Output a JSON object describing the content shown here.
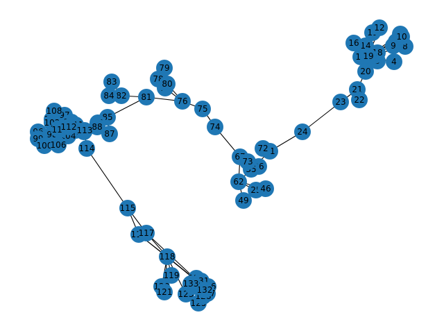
{
  "graph": {
    "node_color": "#1f77b4",
    "edge_color": "#000000",
    "label_color": "#000000",
    "nodes": [
      {
        "id": "1"
      },
      {
        "id": "4"
      },
      {
        "id": "5"
      },
      {
        "id": "7"
      },
      {
        "id": "8"
      },
      {
        "id": "9"
      },
      {
        "id": "10"
      },
      {
        "id": "11"
      },
      {
        "id": "12"
      },
      {
        "id": "13"
      },
      {
        "id": "14"
      },
      {
        "id": "15"
      },
      {
        "id": "16"
      },
      {
        "id": "17"
      },
      {
        "id": "18"
      },
      {
        "id": "19"
      },
      {
        "id": "20"
      },
      {
        "id": "21"
      },
      {
        "id": "22"
      },
      {
        "id": "23"
      },
      {
        "id": "24"
      },
      {
        "id": "25"
      },
      {
        "id": "26"
      },
      {
        "id": "35"
      },
      {
        "id": "46"
      },
      {
        "id": "49"
      },
      {
        "id": "62"
      },
      {
        "id": "67"
      },
      {
        "id": "71"
      },
      {
        "id": "72"
      },
      {
        "id": "73"
      },
      {
        "id": "74"
      },
      {
        "id": "75"
      },
      {
        "id": "76"
      },
      {
        "id": "77"
      },
      {
        "id": "78"
      },
      {
        "id": "79"
      },
      {
        "id": "80"
      },
      {
        "id": "81"
      },
      {
        "id": "82"
      },
      {
        "id": "83"
      },
      {
        "id": "84"
      },
      {
        "id": "85"
      },
      {
        "id": "86"
      },
      {
        "id": "87"
      },
      {
        "id": "88"
      },
      {
        "id": "91"
      },
      {
        "id": "95"
      },
      {
        "id": "96"
      },
      {
        "id": "97"
      },
      {
        "id": "98"
      },
      {
        "id": "99"
      },
      {
        "id": "100"
      },
      {
        "id": "101"
      },
      {
        "id": "102"
      },
      {
        "id": "103"
      },
      {
        "id": "104"
      },
      {
        "id": "105"
      },
      {
        "id": "106"
      },
      {
        "id": "107"
      },
      {
        "id": "108"
      },
      {
        "id": "109"
      },
      {
        "id": "110"
      },
      {
        "id": "111"
      },
      {
        "id": "112"
      },
      {
        "id": "113"
      },
      {
        "id": "114"
      },
      {
        "id": "115"
      },
      {
        "id": "116"
      },
      {
        "id": "117"
      },
      {
        "id": "118"
      },
      {
        "id": "119"
      },
      {
        "id": "120"
      },
      {
        "id": "121"
      },
      {
        "id": "122"
      },
      {
        "id": "123"
      },
      {
        "id": "124"
      },
      {
        "id": "125"
      },
      {
        "id": "126"
      },
      {
        "id": "127"
      },
      {
        "id": "128"
      },
      {
        "id": "129"
      },
      {
        "id": "130"
      },
      {
        "id": "131"
      },
      {
        "id": "132"
      },
      {
        "id": "133"
      }
    ],
    "edges": [
      [
        "1",
        "19"
      ],
      [
        "4",
        "19"
      ],
      [
        "5",
        "19"
      ],
      [
        "7",
        "19"
      ],
      [
        "8",
        "19"
      ],
      [
        "9",
        "19"
      ],
      [
        "10",
        "19"
      ],
      [
        "11",
        "19"
      ],
      [
        "12",
        "19"
      ],
      [
        "13",
        "19"
      ],
      [
        "14",
        "19"
      ],
      [
        "15",
        "19"
      ],
      [
        "16",
        "19"
      ],
      [
        "17",
        "19"
      ],
      [
        "18",
        "19"
      ],
      [
        "19",
        "20"
      ],
      [
        "20",
        "21"
      ],
      [
        "21",
        "22"
      ],
      [
        "21",
        "23"
      ],
      [
        "23",
        "24"
      ],
      [
        "24",
        "71"
      ],
      [
        "71",
        "72"
      ],
      [
        "71",
        "35"
      ],
      [
        "35",
        "26"
      ],
      [
        "35",
        "62"
      ],
      [
        "35",
        "73"
      ],
      [
        "62",
        "46"
      ],
      [
        "62",
        "49"
      ],
      [
        "62",
        "25"
      ],
      [
        "62",
        "67"
      ],
      [
        "67",
        "74"
      ],
      [
        "74",
        "75"
      ],
      [
        "75",
        "76"
      ],
      [
        "76",
        "77"
      ],
      [
        "76",
        "80"
      ],
      [
        "76",
        "81"
      ],
      [
        "80",
        "78"
      ],
      [
        "80",
        "79"
      ],
      [
        "77",
        "78"
      ],
      [
        "81",
        "82"
      ],
      [
        "81",
        "85"
      ],
      [
        "82",
        "83"
      ],
      [
        "82",
        "84"
      ],
      [
        "85",
        "86"
      ],
      [
        "85",
        "87"
      ],
      [
        "85",
        "88"
      ],
      [
        "86",
        "91"
      ],
      [
        "88",
        "91"
      ],
      [
        "91",
        "95"
      ],
      [
        "91",
        "96"
      ],
      [
        "91",
        "97"
      ],
      [
        "91",
        "98"
      ],
      [
        "91",
        "99"
      ],
      [
        "91",
        "100"
      ],
      [
        "91",
        "101"
      ],
      [
        "91",
        "102"
      ],
      [
        "91",
        "103"
      ],
      [
        "91",
        "104"
      ],
      [
        "91",
        "105"
      ],
      [
        "91",
        "106"
      ],
      [
        "91",
        "107"
      ],
      [
        "91",
        "108"
      ],
      [
        "91",
        "109"
      ],
      [
        "91",
        "110"
      ],
      [
        "91",
        "111"
      ],
      [
        "91",
        "112"
      ],
      [
        "91",
        "113"
      ],
      [
        "113",
        "114"
      ],
      [
        "114",
        "115"
      ],
      [
        "115",
        "116"
      ],
      [
        "115",
        "117"
      ],
      [
        "116",
        "118"
      ],
      [
        "117",
        "118"
      ],
      [
        "116",
        "124"
      ],
      [
        "117",
        "124"
      ],
      [
        "118",
        "119"
      ],
      [
        "118",
        "120"
      ],
      [
        "118",
        "121"
      ],
      [
        "118",
        "122"
      ],
      [
        "118",
        "123"
      ],
      [
        "118",
        "124"
      ],
      [
        "124",
        "125"
      ],
      [
        "124",
        "126"
      ],
      [
        "124",
        "127"
      ],
      [
        "124",
        "128"
      ],
      [
        "124",
        "129"
      ],
      [
        "124",
        "130"
      ],
      [
        "124",
        "131"
      ],
      [
        "124",
        "132"
      ],
      [
        "124",
        "133"
      ]
    ]
  }
}
